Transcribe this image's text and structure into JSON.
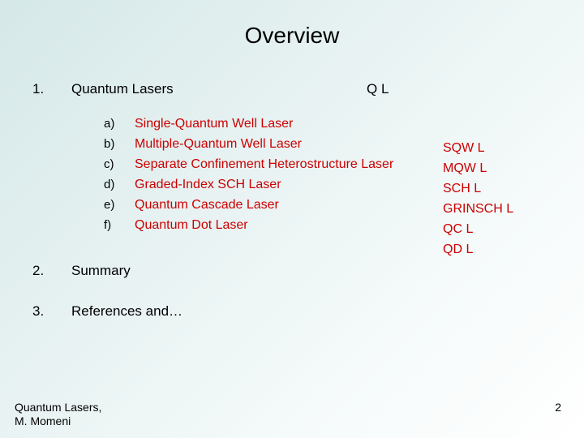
{
  "title": "Overview",
  "sections": [
    {
      "num": "1.",
      "label": "Quantum Lasers",
      "abbr": "Q L"
    },
    {
      "num": "2.",
      "label": "Summary"
    },
    {
      "num": "3.",
      "label": "References and…"
    }
  ],
  "subitems": [
    {
      "letter": "a)",
      "text": "Single-Quantum Well Laser",
      "abbr": "SQW L"
    },
    {
      "letter": "b)",
      "text": "Multiple-Quantum Well Laser",
      "abbr": "MQW L"
    },
    {
      "letter": "c)",
      "text": "Separate Confinement Heterostructure Laser",
      "abbr": "SCH L"
    },
    {
      "letter": "d)",
      "text": "Graded-Index SCH Laser",
      "abbr": "GRINSCH L"
    },
    {
      "letter": "e)",
      "text": "Quantum Cascade Laser",
      "abbr": "QC L"
    },
    {
      "letter": "f)",
      "text": "Quantum Dot Laser",
      "abbr": "QD L"
    }
  ],
  "footer": {
    "line1": "Quantum Lasers,",
    "line2": "M. Momeni"
  },
  "page_number": "2",
  "colors": {
    "accent": "#cc0000",
    "text": "#000000",
    "bg_start": "#d5e8e8",
    "bg_end": "#ffffff"
  },
  "typography": {
    "title_fontsize": 28,
    "section_fontsize": 17,
    "sub_fontsize": 16,
    "footer_fontsize": 14
  }
}
